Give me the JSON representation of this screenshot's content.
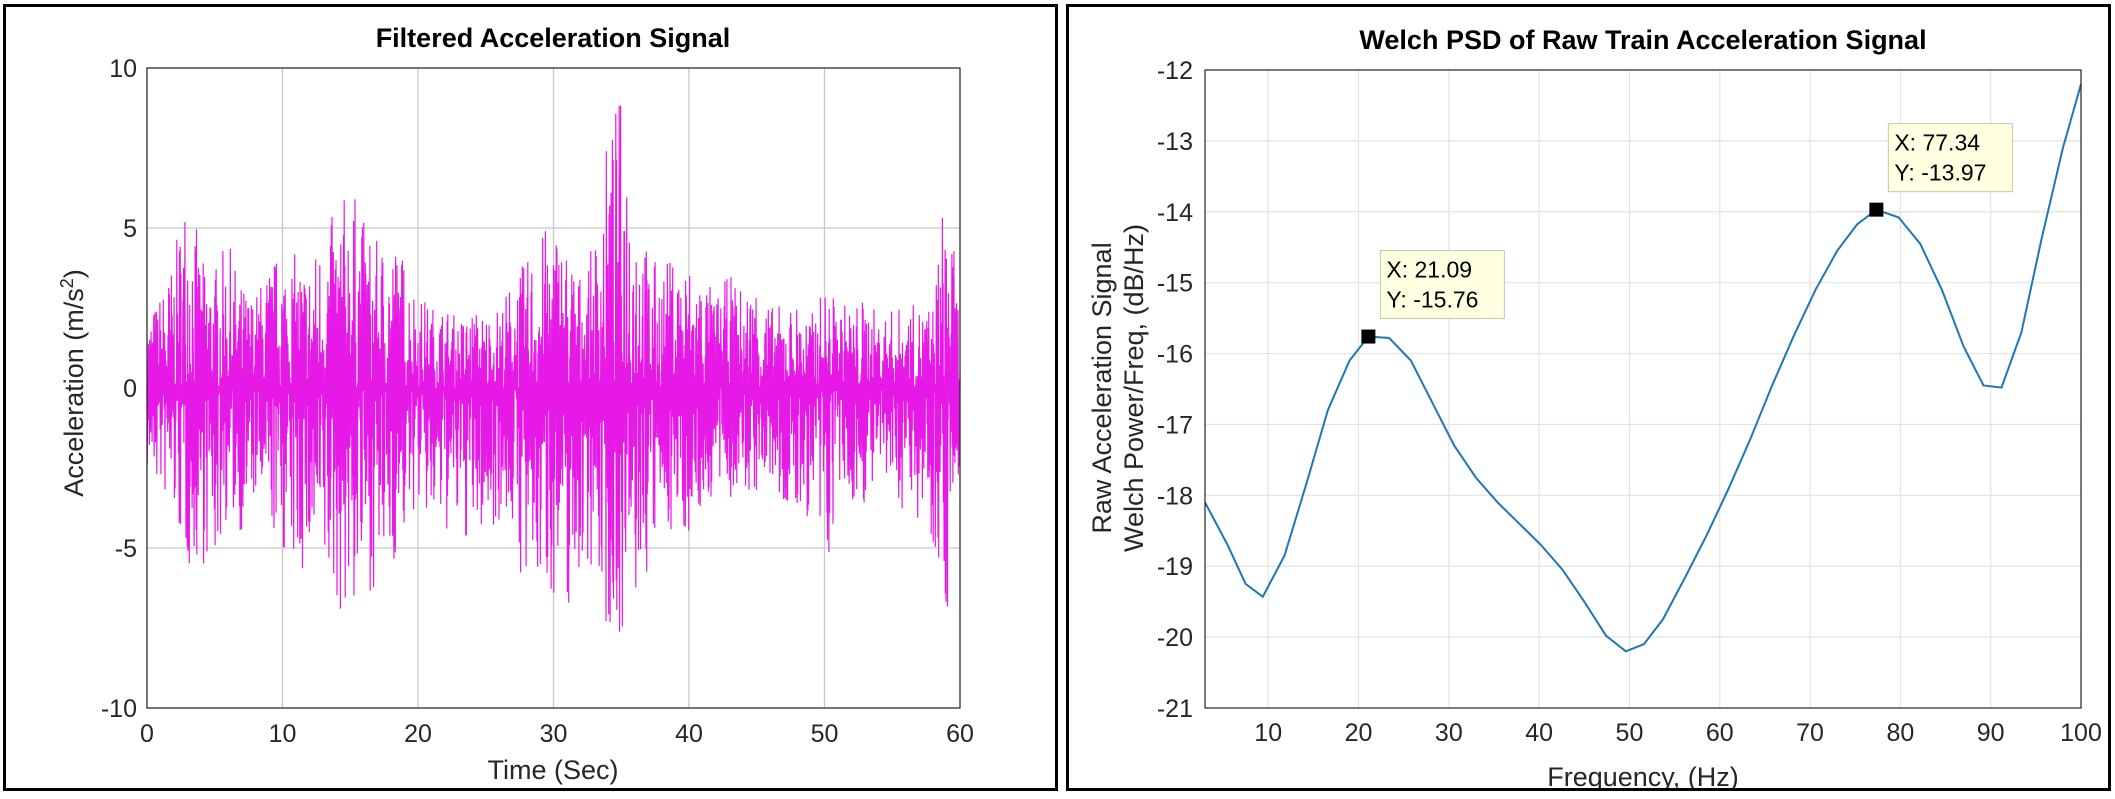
{
  "chart_data": [
    {
      "type": "line",
      "title": "Filtered Acceleration Signal",
      "xlabel": "Time (Sec)",
      "ylabel_main": "Acceleration (m/s",
      "ylabel_sup": "2",
      "ylabel_end": ")",
      "xlim": [
        0,
        60
      ],
      "ylim": [
        -10,
        10
      ],
      "xticks": [
        0,
        10,
        20,
        30,
        40,
        50,
        60
      ],
      "yticks": [
        -10,
        -5,
        0,
        5,
        10
      ],
      "grid": true,
      "color": "#e619e6",
      "envelope": {
        "x": [
          0,
          1,
          2,
          3,
          4,
          5,
          6,
          7,
          8,
          9,
          10,
          11,
          12,
          13,
          14,
          15,
          16,
          17,
          18,
          19,
          20,
          21,
          22,
          23,
          24,
          25,
          26,
          27,
          28,
          29,
          30,
          31,
          32,
          33,
          34,
          35,
          36,
          37,
          38,
          39,
          40,
          41,
          42,
          43,
          44,
          45,
          46,
          47,
          48,
          49,
          50,
          51,
          52,
          53,
          54,
          55,
          56,
          57,
          58,
          59,
          60
        ],
        "upper": [
          2.2,
          3.0,
          4.1,
          6.9,
          4.0,
          3.9,
          4.6,
          3.2,
          3.0,
          3.9,
          4.4,
          4.2,
          4.0,
          5.0,
          5.6,
          6.5,
          5.3,
          4.6,
          4.9,
          4.2,
          3.0,
          2.6,
          2.6,
          2.2,
          2.5,
          2.4,
          2.6,
          3.5,
          4.0,
          4.8,
          5.4,
          4.6,
          3.6,
          4.5,
          8.0,
          9.4,
          6.5,
          4.2,
          3.9,
          4.2,
          4.0,
          3.7,
          2.9,
          3.6,
          3.1,
          3.5,
          2.6,
          2.6,
          2.7,
          2.3,
          3.2,
          2.8,
          2.6,
          2.9,
          2.3,
          2.5,
          2.6,
          2.6,
          2.7,
          6.9,
          2.2
        ],
        "lower": [
          -2.7,
          -3.3,
          -4.2,
          -5.8,
          -5.5,
          -5.7,
          -4.0,
          -4.6,
          -3.6,
          -4.5,
          -5.2,
          -6.0,
          -5.8,
          -6.4,
          -7.0,
          -7.4,
          -6.3,
          -6.4,
          -5.8,
          -4.8,
          -3.6,
          -4.7,
          -4.6,
          -4.8,
          -5.0,
          -4.6,
          -4.2,
          -4.5,
          -7.1,
          -6.4,
          -6.5,
          -7.3,
          -5.8,
          -5.5,
          -8.0,
          -7.8,
          -7.1,
          -6.0,
          -4.3,
          -4.6,
          -4.6,
          -4.0,
          -3.4,
          -3.5,
          -3.6,
          -3.4,
          -3.1,
          -4.0,
          -4.3,
          -4.1,
          -6.4,
          -3.6,
          -3.8,
          -3.6,
          -3.2,
          -3.5,
          -3.9,
          -4.1,
          -4.8,
          -7.3,
          -2.5
        ]
      }
    },
    {
      "type": "line",
      "title": "Welch PSD of Raw Train Acceleration Signal",
      "xlabel": "Frequency, (Hz)",
      "ylabel_line1": "Raw Acceleration Signal",
      "ylabel_line2": "Welch Power/Freq, (dB/Hz)",
      "xlim": [
        3,
        100
      ],
      "ylim": [
        -21,
        -12
      ],
      "xticks": [
        10,
        20,
        30,
        40,
        50,
        60,
        70,
        80,
        90,
        100
      ],
      "yticks": [
        -21,
        -20,
        -19,
        -18,
        -17,
        -16,
        -15,
        -14,
        -13,
        -12
      ],
      "grid": true,
      "color": "#1f77b4",
      "x": [
        3,
        5.5,
        7.5,
        9.4,
        11.8,
        14.2,
        16.6,
        19.0,
        21.09,
        23.4,
        25.8,
        28.2,
        30.6,
        33.0,
        35.4,
        37.8,
        40.2,
        42.6,
        45.0,
        47.4,
        49.6,
        51.6,
        53.7,
        56.2,
        58.6,
        61.0,
        63.4,
        65.8,
        68.2,
        70.6,
        73.0,
        75.2,
        77.34,
        79.8,
        82.2,
        84.6,
        87.0,
        89.2,
        91.2,
        93.4,
        95.6,
        98.0,
        100
      ],
      "y": [
        -18.1,
        -18.7,
        -19.25,
        -19.43,
        -18.85,
        -17.85,
        -16.8,
        -16.1,
        -15.76,
        -15.78,
        -16.1,
        -16.7,
        -17.3,
        -17.75,
        -18.1,
        -18.4,
        -18.7,
        -19.05,
        -19.5,
        -19.98,
        -20.2,
        -20.1,
        -19.75,
        -19.15,
        -18.55,
        -17.9,
        -17.2,
        -16.45,
        -15.75,
        -15.1,
        -14.55,
        -14.18,
        -13.97,
        -14.08,
        -14.45,
        -15.1,
        -15.9,
        -16.45,
        -16.48,
        -15.7,
        -14.4,
        -13.1,
        -12.2
      ],
      "datatips": [
        {
          "x_label": "X: 21.09",
          "y_label": "Y: -15.76",
          "x": 21.09,
          "y": -15.76
        },
        {
          "x_label": "X: 77.34",
          "y_label": "Y: -13.97",
          "x": 77.34,
          "y": -13.97
        }
      ]
    }
  ]
}
